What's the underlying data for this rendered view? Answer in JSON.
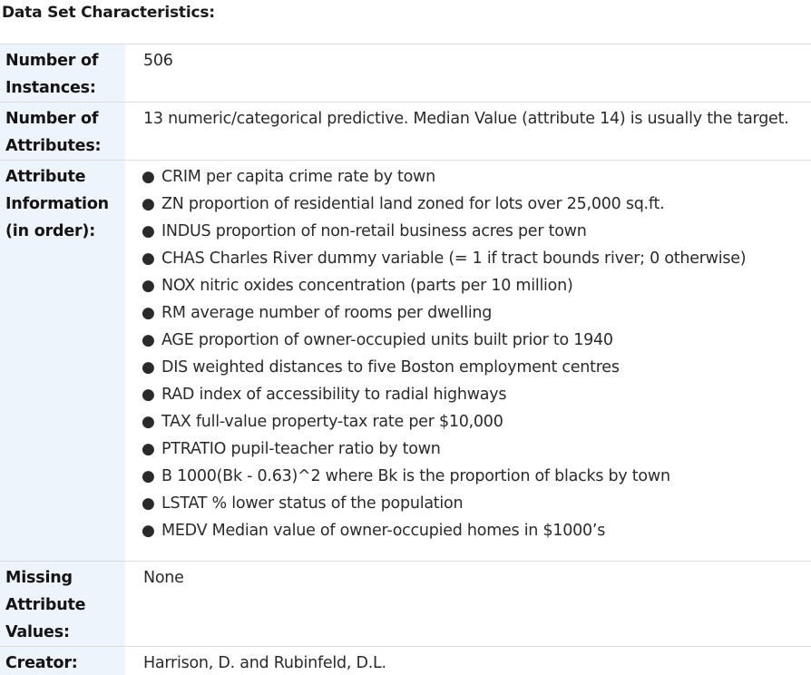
{
  "section": {
    "title": "Data Set Characteristics:"
  },
  "rows": {
    "instances": {
      "label": "Number of Instances:",
      "value": "506"
    },
    "attributes": {
      "label": "Number of Attributes:",
      "value": "13 numeric/categorical predictive. Median Value (attribute 14) is usually the target."
    },
    "attribute_information": {
      "label": "Attribute Information (in order):",
      "items": [
        "CRIM per capita crime rate by town",
        "ZN proportion of residential land zoned for lots over 25,000 sq.ft.",
        "INDUS proportion of non-retail business acres per town",
        "CHAS Charles River dummy variable (= 1 if tract bounds river; 0 otherwise)",
        "NOX nitric oxides concentration (parts per 10 million)",
        "RM average number of rooms per dwelling",
        "AGE proportion of owner-occupied units built prior to 1940",
        "DIS weighted distances to five Boston employment centres",
        "RAD index of accessibility to radial highways",
        "TAX full-value property-tax rate per $10,000",
        "PTRATIO pupil-teacher ratio by town",
        "B 1000(Bk - 0.63)^2 where Bk is the proportion of blacks by town",
        "LSTAT % lower status of the population",
        "MEDV Median value of owner-occupied homes in $1000’s"
      ]
    },
    "missing": {
      "label": "Missing Attribute Values:",
      "value": "None"
    },
    "creator": {
      "label": "Creator:",
      "value": "Harrison, D. and Rubinfeld, D.L."
    }
  },
  "colors": {
    "label_background": "#eef4fb",
    "row_border": "#dcdcdc",
    "text": "#212121"
  }
}
